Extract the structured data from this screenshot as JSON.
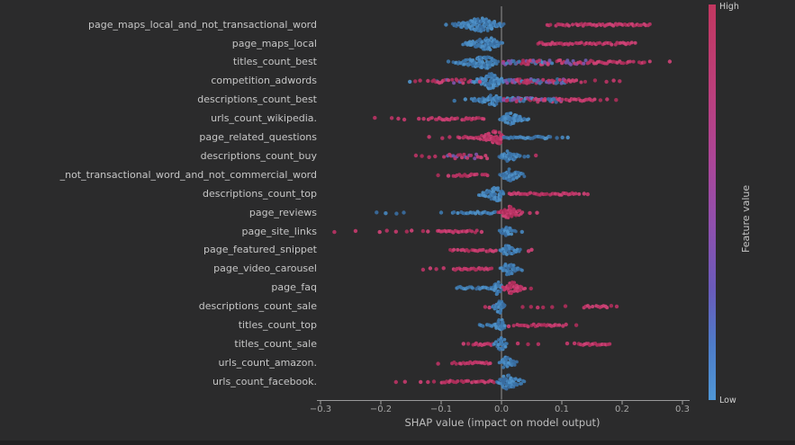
{
  "chart_data": {
    "type": "scatter",
    "variant": "shap-beeswarm-summary",
    "xlabel": "SHAP value (impact on model output)",
    "x_ticks": [
      -0.3,
      -0.2,
      -0.1,
      0.0,
      0.1,
      0.2,
      0.3
    ],
    "x_tick_labels": [
      "−0.3",
      "−0.2",
      "−0.1",
      "0.0",
      "0.1",
      "0.2",
      "0.3"
    ],
    "xlim": [
      -0.31,
      0.31
    ],
    "grid": false,
    "zero_line": 0.0,
    "colorbar": {
      "high": "High",
      "low": "Low",
      "label": "Feature value",
      "position": "right"
    },
    "features": [
      {
        "name": "page_maps_local_and_not_transactional_word",
        "clusters": [
          {
            "k": "d",
            "c": "blue",
            "xs": [
              -0.092
            ]
          },
          {
            "k": "v",
            "c": "blue",
            "f": -0.082,
            "t": 0.004,
            "p": -0.033,
            "s": 7.5
          },
          {
            "k": "b",
            "c": "pink",
            "f": 0.075,
            "t": 0.246
          }
        ]
      },
      {
        "name": "page_maps_local",
        "clusters": [
          {
            "k": "v",
            "c": "blue",
            "f": -0.064,
            "t": 0.003,
            "p": -0.021,
            "s": 7
          },
          {
            "k": "b",
            "c": "pink",
            "f": 0.06,
            "t": 0.224
          }
        ]
      },
      {
        "name": "titles_count_best",
        "clusters": [
          {
            "k": "d",
            "c": "blue",
            "xs": [
              -0.088
            ]
          },
          {
            "k": "v",
            "c": "blue",
            "f": -0.08,
            "t": -0.004,
            "p": -0.024,
            "s": 6.5
          },
          {
            "k": "b",
            "c": "mix",
            "f": 0.002,
            "t": 0.085
          },
          {
            "k": "b",
            "c": "pinkpurple",
            "f": 0.085,
            "t": 0.15
          },
          {
            "k": "b",
            "c": "pink",
            "f": 0.15,
            "t": 0.248
          },
          {
            "k": "d",
            "c": "pink",
            "xs": [
              0.279
            ]
          }
        ]
      },
      {
        "name": "competition_adwords",
        "clusters": [
          {
            "k": "d",
            "c": "blue",
            "xs": [
              -0.152,
              -0.107
            ]
          },
          {
            "k": "d",
            "c": "pink",
            "xs": [
              -0.143,
              -0.135,
              -0.122
            ]
          },
          {
            "k": "b",
            "c": "pinkpurple",
            "f": -0.115,
            "t": -0.048
          },
          {
            "k": "v",
            "c": "blue",
            "f": -0.048,
            "t": 0.006,
            "p": -0.019,
            "s": 9
          },
          {
            "k": "d",
            "c": "pink",
            "xs": [
              -0.036
            ]
          },
          {
            "k": "b",
            "c": "mix",
            "f": 0.006,
            "t": 0.105
          },
          {
            "k": "b",
            "c": "pink",
            "f": 0.105,
            "t": 0.14
          },
          {
            "k": "d",
            "c": "pink",
            "xs": [
              0.155,
              0.174,
              0.186,
              0.196
            ]
          }
        ]
      },
      {
        "name": "descriptions_count_best",
        "clusters": [
          {
            "k": "d",
            "c": "blue",
            "xs": [
              -0.078,
              -0.06
            ]
          },
          {
            "k": "v",
            "c": "blue",
            "f": -0.05,
            "t": 0.003,
            "p": -0.012,
            "s": 6
          },
          {
            "k": "b",
            "c": "mix",
            "f": 0.003,
            "t": 0.1
          },
          {
            "k": "b",
            "c": "pink",
            "f": 0.1,
            "t": 0.155
          },
          {
            "k": "d",
            "c": "pink",
            "xs": [
              0.164,
              0.175,
              0.19
            ]
          }
        ]
      },
      {
        "name": "urls_count_wikipedia.",
        "clusters": [
          {
            "k": "d",
            "c": "pink",
            "xs": [
              -0.21,
              -0.182,
              -0.171,
              -0.161,
              -0.137,
              -0.129
            ]
          },
          {
            "k": "b",
            "c": "pink",
            "f": -0.122,
            "t": -0.028
          },
          {
            "k": "v",
            "c": "blue",
            "f": -0.003,
            "t": 0.046,
            "p": 0.012,
            "s": 6.5
          }
        ]
      },
      {
        "name": "page_related_questions",
        "clusters": [
          {
            "k": "d",
            "c": "pink",
            "xs": [
              -0.12,
              -0.098,
              -0.086
            ]
          },
          {
            "k": "b",
            "c": "pink",
            "f": -0.076,
            "t": -0.04
          },
          {
            "k": "v",
            "c": "pink",
            "f": -0.04,
            "t": 0.003,
            "p": -0.006,
            "s": 8
          },
          {
            "k": "b",
            "c": "blue",
            "f": 0.003,
            "t": 0.085
          },
          {
            "k": "d",
            "c": "blue",
            "xs": [
              0.092,
              0.101,
              0.11
            ]
          }
        ]
      },
      {
        "name": "descriptions_count_buy",
        "clusters": [
          {
            "k": "d",
            "c": "pink",
            "xs": [
              -0.142,
              -0.132,
              -0.12,
              -0.11
            ]
          },
          {
            "k": "b",
            "c": "pinkpurple",
            "f": -0.096,
            "t": -0.022
          },
          {
            "k": "v",
            "c": "blue",
            "f": -0.005,
            "t": 0.031,
            "p": 0.01,
            "s": 6
          },
          {
            "k": "d",
            "c": "blue",
            "xs": [
              0.038,
              0.044
            ]
          },
          {
            "k": "d",
            "c": "pink",
            "xs": [
              0.057
            ]
          }
        ]
      },
      {
        "name": "_not_transactional_word_and_not_commercial_word",
        "clusters": [
          {
            "k": "d",
            "c": "pink",
            "xs": [
              -0.105,
              -0.088
            ]
          },
          {
            "k": "b",
            "c": "pink",
            "f": -0.08,
            "t": -0.018
          },
          {
            "k": "v",
            "c": "blue",
            "f": -0.003,
            "t": 0.038,
            "p": 0.01,
            "s": 7
          }
        ]
      },
      {
        "name": "descriptions_count_top",
        "clusters": [
          {
            "k": "v",
            "c": "blue",
            "f": -0.038,
            "t": 0.004,
            "p": -0.006,
            "s": 8
          },
          {
            "k": "b",
            "c": "pink",
            "f": 0.012,
            "t": 0.131
          },
          {
            "k": "d",
            "c": "pink",
            "xs": [
              0.137,
              0.143
            ]
          }
        ]
      },
      {
        "name": "page_reviews",
        "clusters": [
          {
            "k": "d",
            "c": "blue",
            "xs": [
              -0.207,
              -0.192,
              -0.174,
              -0.162,
              -0.1
            ]
          },
          {
            "k": "b",
            "c": "blue",
            "f": -0.082,
            "t": -0.01
          },
          {
            "k": "v",
            "c": "pink",
            "f": -0.006,
            "t": 0.036,
            "p": 0.01,
            "s": 7
          },
          {
            "k": "d",
            "c": "pink",
            "xs": [
              0.047,
              0.059
            ]
          }
        ]
      },
      {
        "name": "page_site_links",
        "clusters": [
          {
            "k": "d",
            "c": "pink",
            "xs": [
              -0.277,
              -0.242,
              -0.202,
              -0.19,
              -0.175,
              -0.157,
              -0.149,
              -0.13,
              -0.122
            ]
          },
          {
            "k": "b",
            "c": "pink",
            "f": -0.107,
            "t": -0.04
          },
          {
            "k": "d",
            "c": "pink",
            "xs": [
              -0.033
            ]
          },
          {
            "k": "v",
            "c": "blue",
            "f": -0.004,
            "t": 0.023,
            "p": 0.008,
            "s": 5.5
          },
          {
            "k": "d",
            "c": "blue",
            "xs": [
              0.034
            ]
          }
        ]
      },
      {
        "name": "page_featured_snippet",
        "clusters": [
          {
            "k": "b",
            "c": "pink",
            "f": -0.085,
            "t": -0.01
          },
          {
            "k": "v",
            "c": "blue",
            "f": -0.003,
            "t": 0.032,
            "p": 0.008,
            "s": 6
          },
          {
            "k": "d",
            "c": "pink",
            "xs": [
              0.045,
              0.05
            ]
          }
        ]
      },
      {
        "name": "page_video_carousel",
        "clusters": [
          {
            "k": "d",
            "c": "pink",
            "xs": [
              -0.13,
              -0.118,
              -0.108,
              -0.096
            ]
          },
          {
            "k": "b",
            "c": "pink",
            "f": -0.08,
            "t": -0.015
          },
          {
            "k": "v",
            "c": "blue",
            "f": -0.003,
            "t": 0.034,
            "p": 0.008,
            "s": 6.5
          }
        ]
      },
      {
        "name": "page_faq",
        "clusters": [
          {
            "k": "b",
            "c": "blue",
            "f": -0.075,
            "t": -0.018
          },
          {
            "k": "v",
            "c": "blue",
            "f": -0.017,
            "t": 0.002,
            "p": -0.008,
            "s": 7
          },
          {
            "k": "v",
            "c": "pink",
            "f": 0.002,
            "t": 0.04,
            "p": 0.012,
            "s": 7
          },
          {
            "k": "d",
            "c": "pink",
            "xs": [
              0.049
            ]
          }
        ]
      },
      {
        "name": "descriptions_count_sale",
        "clusters": [
          {
            "k": "d",
            "c": "pink",
            "xs": [
              -0.027,
              -0.02,
              -0.012
            ]
          },
          {
            "k": "v",
            "c": "blue",
            "f": -0.016,
            "t": 0.006,
            "p": -0.003,
            "s": 8
          },
          {
            "k": "d",
            "c": "pink",
            "xs": [
              0.035,
              0.049,
              0.06,
              0.069,
              0.084,
              0.106
            ]
          },
          {
            "k": "b",
            "c": "pink",
            "f": 0.136,
            "t": 0.176
          },
          {
            "k": "d",
            "c": "pink",
            "xs": [
              0.182,
              0.191
            ]
          }
        ]
      },
      {
        "name": "titles_count_top",
        "clusters": [
          {
            "k": "b",
            "c": "blue",
            "f": -0.037,
            "t": -0.01
          },
          {
            "k": "v",
            "c": "blue",
            "f": -0.011,
            "t": 0.005,
            "p": -0.002,
            "s": 7.5
          },
          {
            "k": "d",
            "c": "pink",
            "xs": [
              0.012
            ]
          },
          {
            "k": "b",
            "c": "pink",
            "f": 0.02,
            "t": 0.097
          },
          {
            "k": "d",
            "c": "pink",
            "xs": [
              0.102,
              0.107,
              0.124
            ]
          }
        ]
      },
      {
        "name": "titles_count_sale",
        "clusters": [
          {
            "k": "d",
            "c": "pink",
            "xs": [
              -0.063,
              -0.055
            ]
          },
          {
            "k": "b",
            "c": "pink",
            "f": -0.048,
            "t": -0.015
          },
          {
            "k": "v",
            "c": "blue",
            "f": -0.014,
            "t": 0.01,
            "p": 0.0,
            "s": 7.5
          },
          {
            "k": "d",
            "c": "pink",
            "xs": [
              0.027,
              0.044,
              0.061,
              0.109,
              0.121,
              0.128
            ]
          },
          {
            "k": "b",
            "c": "pink",
            "f": 0.131,
            "t": 0.179
          }
        ]
      },
      {
        "name": "urls_count_amazon.",
        "clusters": [
          {
            "k": "d",
            "c": "pink",
            "xs": [
              -0.105
            ]
          },
          {
            "k": "b",
            "c": "pink",
            "f": -0.082,
            "t": -0.018
          },
          {
            "k": "v",
            "c": "blue",
            "f": -0.004,
            "t": 0.026,
            "p": 0.007,
            "s": 7
          }
        ]
      },
      {
        "name": "urls_count_facebook.",
        "clusters": [
          {
            "k": "d",
            "c": "pink",
            "xs": [
              -0.175,
              -0.16,
              -0.134,
              -0.122,
              -0.112
            ]
          },
          {
            "k": "b",
            "c": "pink",
            "f": -0.1,
            "t": -0.013
          },
          {
            "k": "v",
            "c": "blue",
            "f": -0.008,
            "t": 0.038,
            "p": 0.008,
            "s": 8
          }
        ]
      }
    ]
  },
  "colors": {
    "background": "#2b2b2c",
    "label_text": "#c6c6c6",
    "tick_text": "#a6a6a6",
    "axis_line": "#9a9a9a",
    "zero_line": "#828282",
    "dot_pink": "#c43a6c",
    "dot_blue": "#4685bd",
    "dot_purple": "#7f54aa",
    "colorbar_top": "#c23760",
    "colorbar_bottom": "#4f97d6"
  }
}
